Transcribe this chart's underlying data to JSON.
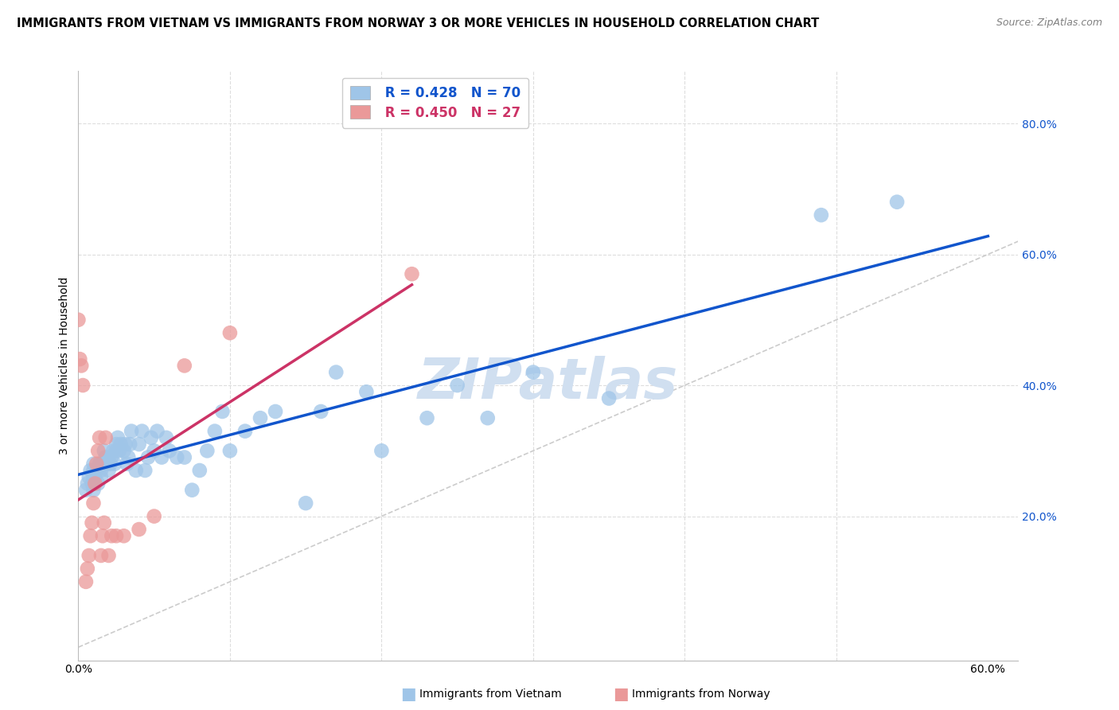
{
  "title": "IMMIGRANTS FROM VIETNAM VS IMMIGRANTS FROM NORWAY 3 OR MORE VEHICLES IN HOUSEHOLD CORRELATION CHART",
  "source": "Source: ZipAtlas.com",
  "ylabel": "3 or more Vehicles in Household",
  "xlim": [
    0.0,
    0.62
  ],
  "ylim": [
    -0.02,
    0.88
  ],
  "r_vietnam": 0.428,
  "n_vietnam": 70,
  "r_norway": 0.45,
  "n_norway": 27,
  "color_vietnam": "#9fc5e8",
  "color_norway": "#ea9999",
  "color_vietnam_line": "#1155cc",
  "color_norway_line": "#cc3366",
  "color_diag": "#cccccc",
  "legend_label_vietnam": "Immigrants from Vietnam",
  "legend_label_norway": "Immigrants from Norway",
  "vietnam_x": [
    0.005,
    0.006,
    0.007,
    0.008,
    0.009,
    0.01,
    0.01,
    0.01,
    0.01,
    0.011,
    0.012,
    0.013,
    0.014,
    0.015,
    0.015,
    0.016,
    0.017,
    0.018,
    0.019,
    0.02,
    0.02,
    0.021,
    0.022,
    0.023,
    0.024,
    0.025,
    0.025,
    0.026,
    0.027,
    0.028,
    0.03,
    0.031,
    0.032,
    0.033,
    0.034,
    0.035,
    0.038,
    0.04,
    0.042,
    0.044,
    0.046,
    0.048,
    0.05,
    0.052,
    0.055,
    0.058,
    0.06,
    0.065,
    0.07,
    0.075,
    0.08,
    0.085,
    0.09,
    0.095,
    0.1,
    0.11,
    0.12,
    0.13,
    0.15,
    0.16,
    0.17,
    0.19,
    0.2,
    0.23,
    0.25,
    0.27,
    0.3,
    0.35,
    0.49,
    0.54
  ],
  "vietnam_y": [
    0.24,
    0.25,
    0.26,
    0.27,
    0.25,
    0.26,
    0.27,
    0.28,
    0.24,
    0.26,
    0.27,
    0.25,
    0.28,
    0.26,
    0.27,
    0.28,
    0.3,
    0.29,
    0.28,
    0.29,
    0.27,
    0.28,
    0.29,
    0.3,
    0.28,
    0.3,
    0.31,
    0.32,
    0.3,
    0.31,
    0.3,
    0.31,
    0.28,
    0.29,
    0.31,
    0.33,
    0.27,
    0.31,
    0.33,
    0.27,
    0.29,
    0.32,
    0.3,
    0.33,
    0.29,
    0.32,
    0.3,
    0.29,
    0.29,
    0.24,
    0.27,
    0.3,
    0.33,
    0.36,
    0.3,
    0.33,
    0.35,
    0.36,
    0.22,
    0.36,
    0.42,
    0.39,
    0.3,
    0.35,
    0.4,
    0.35,
    0.42,
    0.38,
    0.66,
    0.68
  ],
  "norway_x": [
    0.0,
    0.001,
    0.002,
    0.003,
    0.005,
    0.006,
    0.007,
    0.008,
    0.009,
    0.01,
    0.011,
    0.012,
    0.013,
    0.014,
    0.015,
    0.016,
    0.017,
    0.018,
    0.02,
    0.022,
    0.025,
    0.03,
    0.04,
    0.05,
    0.07,
    0.1,
    0.22
  ],
  "norway_y": [
    0.5,
    0.44,
    0.43,
    0.4,
    0.1,
    0.12,
    0.14,
    0.17,
    0.19,
    0.22,
    0.25,
    0.28,
    0.3,
    0.32,
    0.14,
    0.17,
    0.19,
    0.32,
    0.14,
    0.17,
    0.17,
    0.17,
    0.18,
    0.2,
    0.43,
    0.48,
    0.57
  ],
  "background_color": "#ffffff",
  "grid_color": "#dddddd",
  "title_fontsize": 10.5,
  "axis_label_fontsize": 10,
  "tick_fontsize": 10,
  "watermark_text": "ZIPatlas",
  "watermark_color": "#d0dff0"
}
